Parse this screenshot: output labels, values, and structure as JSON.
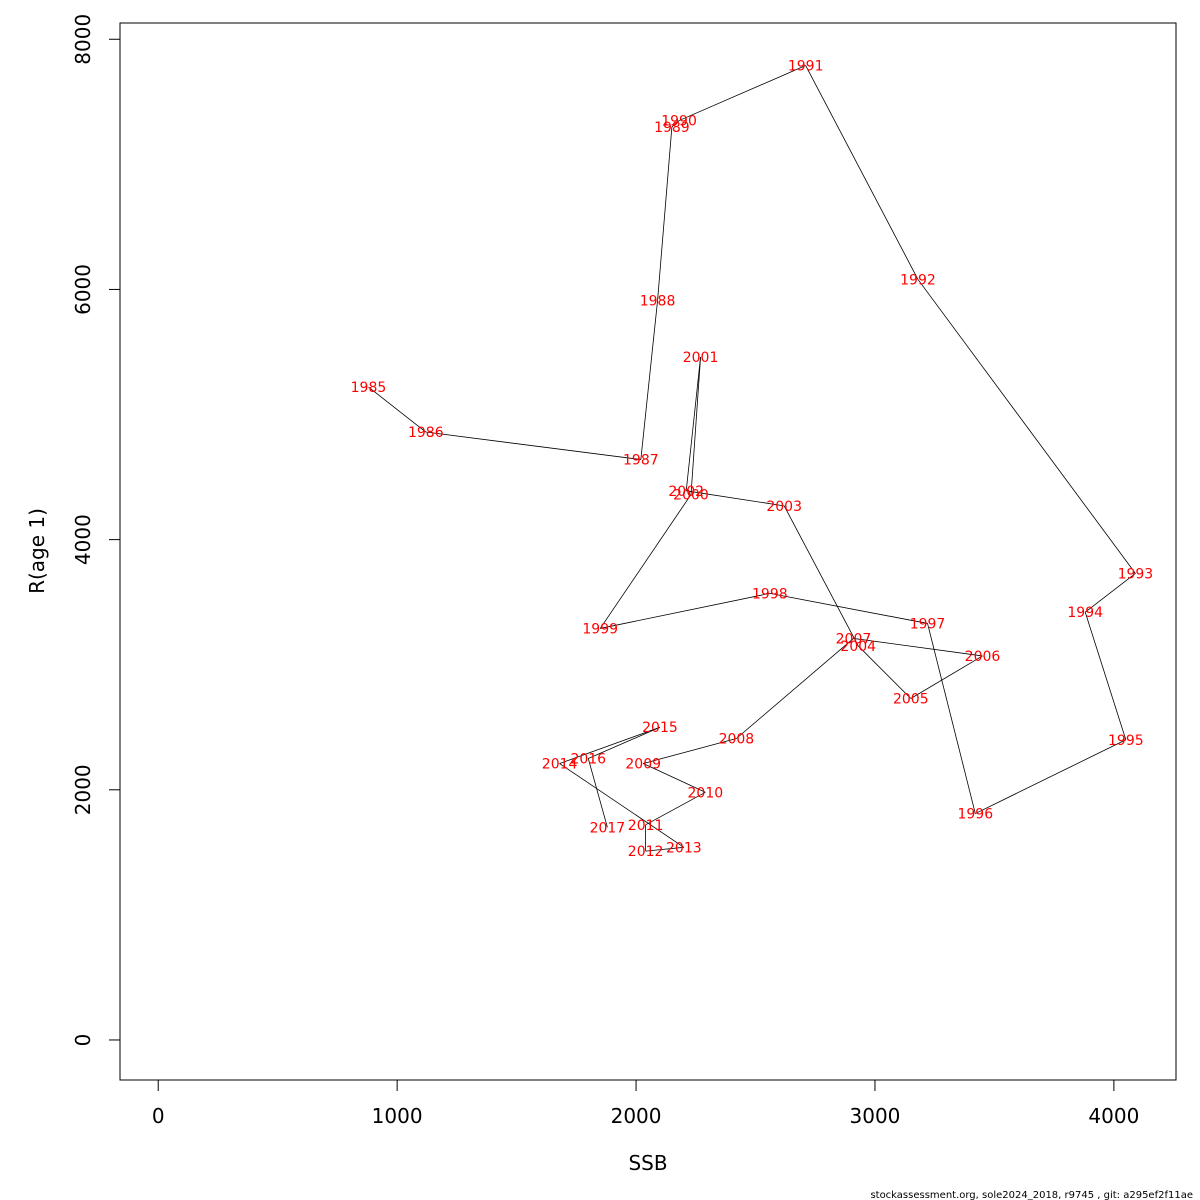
{
  "chart_data": {
    "type": "line",
    "title": "",
    "xlabel": "SSB",
    "ylabel": "R(age 1)",
    "xlim": [
      -160,
      4260
    ],
    "ylim": [
      -320,
      8130
    ],
    "x_ticks": [
      0,
      1000,
      2000,
      3000,
      4000
    ],
    "y_ticks": [
      0,
      2000,
      4000,
      6000,
      8000
    ],
    "x_tick_labels": [
      "0",
      "1000",
      "2000",
      "3000",
      "4000"
    ],
    "y_tick_labels": [
      "0",
      "2000",
      "4000",
      "6000",
      "8000"
    ],
    "line_color": "#000000",
    "label_color": "#ff0000",
    "series": [
      {
        "name": "SSB vs R(age 1)",
        "points": [
          {
            "label": "1985",
            "x": 880,
            "y": 5220
          },
          {
            "label": "1986",
            "x": 1120,
            "y": 4860
          },
          {
            "label": "1987",
            "x": 2020,
            "y": 4640
          },
          {
            "label": "1988",
            "x": 2090,
            "y": 5910
          },
          {
            "label": "1989",
            "x": 2150,
            "y": 7300
          },
          {
            "label": "1990",
            "x": 2180,
            "y": 7350
          },
          {
            "label": "1991",
            "x": 2710,
            "y": 7790
          },
          {
            "label": "1992",
            "x": 3180,
            "y": 6080
          },
          {
            "label": "1993",
            "x": 4090,
            "y": 3730
          },
          {
            "label": "1994",
            "x": 3880,
            "y": 3420
          },
          {
            "label": "1995",
            "x": 4050,
            "y": 2400
          },
          {
            "label": "1996",
            "x": 3420,
            "y": 1810
          },
          {
            "label": "1997",
            "x": 3220,
            "y": 3330
          },
          {
            "label": "1998",
            "x": 2560,
            "y": 3570
          },
          {
            "label": "1999",
            "x": 1850,
            "y": 3290
          },
          {
            "label": "2000",
            "x": 2230,
            "y": 4360
          },
          {
            "label": "2001",
            "x": 2270,
            "y": 5460
          },
          {
            "label": "2002",
            "x": 2210,
            "y": 4390
          },
          {
            "label": "2003",
            "x": 2620,
            "y": 4270
          },
          {
            "label": "2004",
            "x": 2930,
            "y": 3150
          },
          {
            "label": "2005",
            "x": 3150,
            "y": 2730
          },
          {
            "label": "2006",
            "x": 3450,
            "y": 3070
          },
          {
            "label": "2007",
            "x": 2910,
            "y": 3210
          },
          {
            "label": "2008",
            "x": 2420,
            "y": 2410
          },
          {
            "label": "2009",
            "x": 2030,
            "y": 2210
          },
          {
            "label": "2010",
            "x": 2290,
            "y": 1980
          },
          {
            "label": "2011",
            "x": 2040,
            "y": 1720
          },
          {
            "label": "2012",
            "x": 2040,
            "y": 1510
          },
          {
            "label": "2013",
            "x": 2200,
            "y": 1540
          },
          {
            "label": "2014",
            "x": 1680,
            "y": 2210
          },
          {
            "label": "2015",
            "x": 2100,
            "y": 2500
          },
          {
            "label": "2016",
            "x": 1800,
            "y": 2250
          },
          {
            "label": "2017",
            "x": 1880,
            "y": 1700
          }
        ]
      }
    ]
  },
  "footer": {
    "text": "stockassessment.org, sole2024_2018, r9745 , git: a295ef2f11ae"
  }
}
